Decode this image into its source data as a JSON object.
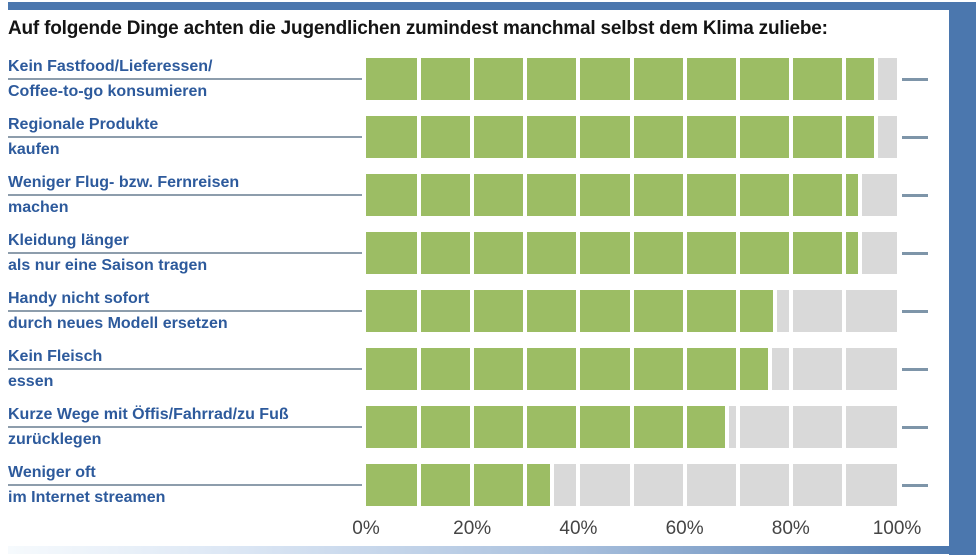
{
  "title": "Auf folgende Dinge achten die Jugendlichen zumindest manchmal selbst dem Klima zuliebe:",
  "colors": {
    "frame_blue": "#4b77ae",
    "bar_green": "#9cbd64",
    "track_gray": "#d9d9d9",
    "label_blue": "#2d5a9c",
    "rule_gray": "#8d9dac",
    "tick_gray": "#7e95a9",
    "title_text": "#141414",
    "axis_text": "#454545"
  },
  "chart_data": {
    "type": "bar",
    "orientation": "horizontal",
    "unit": "%",
    "title": "Auf folgende Dinge achten die Jugendlichen zumindest manchmal selbst dem Klima zuliebe:",
    "categories": [
      [
        "Kein Fastfood/Lieferessen/",
        "Coffee-to-go konsumieren"
      ],
      [
        "Regionale Produkte",
        "kaufen"
      ],
      [
        "Weniger Flug- bzw. Fernreisen",
        "machen"
      ],
      [
        "Kleidung länger",
        "als nur eine Saison tragen"
      ],
      [
        "Handy nicht sofort",
        "durch neues Modell ersetzen"
      ],
      [
        "Kein Fleisch",
        "essen"
      ],
      [
        "Kurze Wege mit Öffis/Fahrrad/zu Fuß",
        "zurücklegen"
      ],
      [
        "Weniger oft",
        "im Internet streamen"
      ]
    ],
    "values": [
      96,
      96,
      93,
      93,
      77,
      76,
      68,
      35
    ],
    "xlim": [
      0,
      100
    ],
    "x_ticks": [
      "0%",
      "20%",
      "40%",
      "60%",
      "80%",
      "100%"
    ],
    "x_tick_positions": [
      0,
      20,
      40,
      60,
      80,
      100
    ],
    "segment_step": 10,
    "grid": false,
    "legend": false
  }
}
